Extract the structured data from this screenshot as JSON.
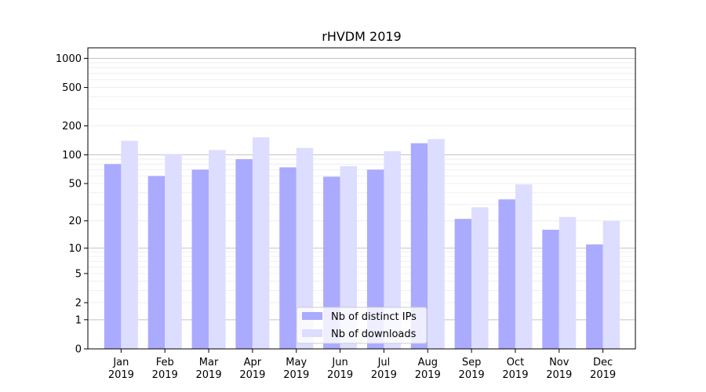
{
  "chart_data": {
    "type": "bar",
    "title": "rHVDM 2019",
    "xlabel": "",
    "ylabel": "",
    "scale": "symlog",
    "categories": [
      "Jan\n2019",
      "Feb\n2019",
      "Mar\n2019",
      "Apr\n2019",
      "May\n2019",
      "Jun\n2019",
      "Jul\n2019",
      "Aug\n2019",
      "Sep\n2019",
      "Oct\n2019",
      "Nov\n2019",
      "Dec\n2019"
    ],
    "series": [
      {
        "name": "Nb of distinct IPs",
        "color": "#aaaaff",
        "values": [
          80,
          60,
          70,
          90,
          74,
          59,
          70,
          132,
          21,
          34,
          16,
          11
        ]
      },
      {
        "name": "Nb of downloads",
        "color": "#ddddff",
        "values": [
          140,
          102,
          112,
          152,
          118,
          76,
          109,
          146,
          28,
          49,
          22,
          20
        ]
      }
    ],
    "y_ticks": [
      0,
      1,
      2,
      5,
      10,
      20,
      50,
      100,
      200,
      500,
      1000
    ],
    "ylim": [
      0,
      1000
    ],
    "grid": true,
    "legend": "bottom-center"
  }
}
